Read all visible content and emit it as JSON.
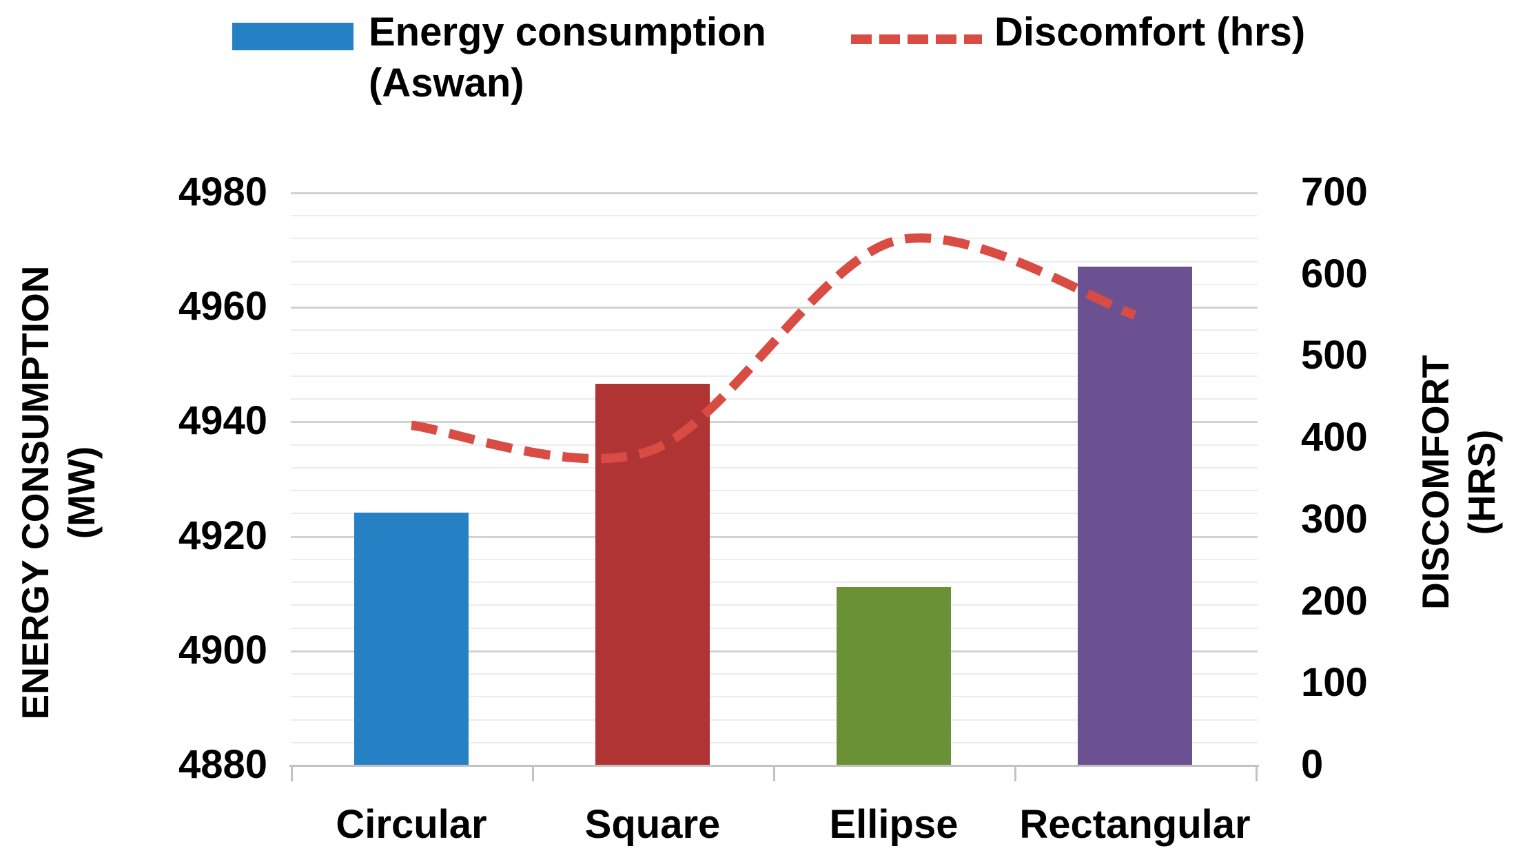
{
  "legend": {
    "energy": {
      "label_line1": "Energy consumption",
      "label_line2": "(Aswan)",
      "color": "#2581C4"
    },
    "discomfort": {
      "label": "Discomfort (hrs)",
      "color": "#D94C44"
    }
  },
  "left_axis": {
    "title_line1": "ENERGY CONSUMPTION",
    "title_line2": "(MW)",
    "ticks": [
      "4980",
      "4960",
      "4940",
      "4920",
      "4900",
      "4880"
    ]
  },
  "right_axis": {
    "title_line1": "DISCOMFORT",
    "title_line2": "(HRS)",
    "ticks": [
      "700",
      "600",
      "500",
      "400",
      "300",
      "200",
      "100",
      "0"
    ]
  },
  "chart_data": {
    "type": "bar+line",
    "categories": [
      "Circular",
      "Square",
      "Ellipse",
      "Rectangular"
    ],
    "series": [
      {
        "name": "Energy consumption (Aswan)",
        "type": "bar",
        "axis": "left",
        "values": [
          4924,
          4946.5,
          4911,
          4967
        ],
        "colors": [
          "#2581C4",
          "#B03433",
          "#6A9135",
          "#6B5191"
        ]
      },
      {
        "name": "Discomfort (hrs)",
        "type": "line",
        "axis": "right",
        "style": "dashed",
        "color": "#D94C44",
        "values": [
          415,
          385,
          640,
          550
        ]
      }
    ],
    "left_ylim": [
      4880,
      4980
    ],
    "right_ylim": [
      0,
      700
    ],
    "left_major_step": 20,
    "left_minor_step": 4,
    "right_major_step": 100,
    "legend_position": "top",
    "grid": "horizontal"
  }
}
